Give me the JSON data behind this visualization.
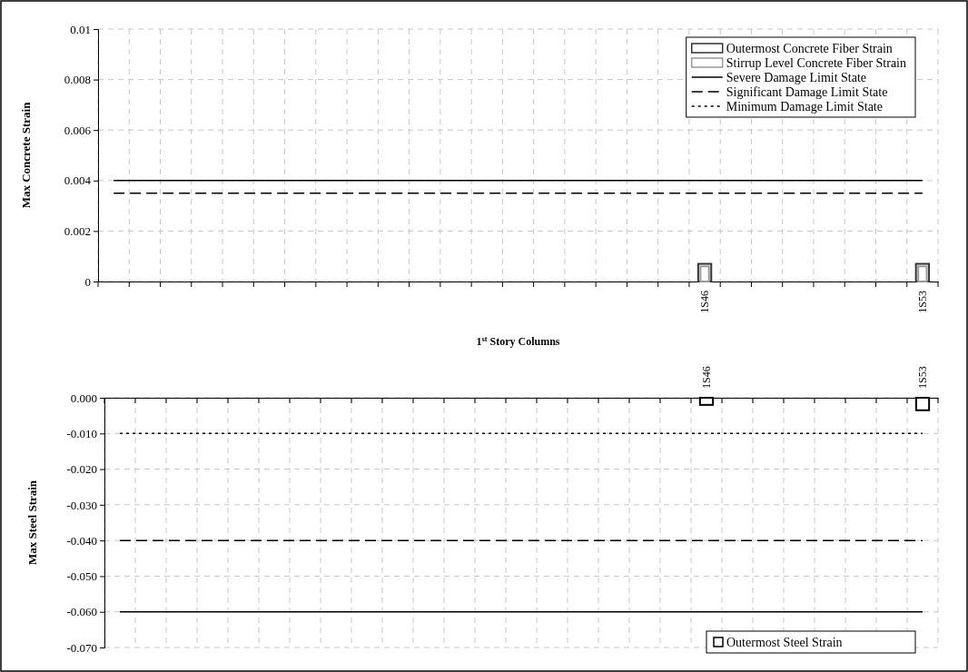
{
  "chart_data": [
    {
      "type": "bar",
      "xlabel": "1$^{st}$ Story Columns",
      "ylabel": "Max Concrete Strain",
      "categories": [
        null,
        null,
        null,
        null,
        null,
        null,
        null,
        null,
        null,
        null,
        null,
        null,
        null,
        null,
        null,
        null,
        null,
        null,
        null,
        "1S46",
        null,
        null,
        null,
        null,
        null,
        null,
        "1S53"
      ],
      "series": [
        {
          "name": "Outermost Concrete Fiber Strain",
          "color": "#333333",
          "values": [
            null,
            null,
            null,
            null,
            null,
            null,
            null,
            null,
            null,
            null,
            null,
            null,
            null,
            null,
            null,
            null,
            null,
            null,
            null,
            0.0007,
            null,
            null,
            null,
            null,
            null,
            null,
            0.0007
          ]
        },
        {
          "name": "Stirrup Level Concrete Fiber Strain",
          "color": "#999999",
          "values": [
            null,
            null,
            null,
            null,
            null,
            null,
            null,
            null,
            null,
            null,
            null,
            null,
            null,
            null,
            null,
            null,
            null,
            null,
            null,
            0.0006,
            null,
            null,
            null,
            null,
            null,
            null,
            0.0006
          ]
        },
        {
          "name": "Severe Damage Limit State",
          "type": "line",
          "color": "#000000",
          "line_style": "solid",
          "values": [
            0.004,
            0.004,
            0.004,
            0.004,
            0.004,
            0.004,
            0.004,
            0.004,
            0.004,
            0.004,
            0.004,
            0.004,
            0.004,
            0.004,
            0.004,
            0.004,
            0.004,
            0.004,
            0.004,
            0.004,
            0.004,
            0.004,
            0.004,
            0.004,
            0.004,
            0.004,
            0.004
          ]
        },
        {
          "name": "Significant Damage Limit State",
          "type": "line",
          "color": "#000000",
          "line_style": "dashed",
          "values": [
            0.0035,
            0.0035,
            0.0035,
            0.0035,
            0.0035,
            0.0035,
            0.0035,
            0.0035,
            0.0035,
            0.0035,
            0.0035,
            0.0035,
            0.0035,
            0.0035,
            0.0035,
            0.0035,
            0.0035,
            0.0035,
            0.0035,
            0.0035,
            0.0035,
            0.0035,
            0.0035,
            0.0035,
            0.0035,
            0.0035,
            0.0035
          ]
        },
        {
          "name": "Minimum Damage Limit State",
          "type": "line",
          "color": "#000000",
          "line_style": "dotted",
          "values": [
            null,
            null,
            null,
            null,
            null,
            null,
            null,
            null,
            null,
            null,
            null,
            null,
            null,
            null,
            null,
            null,
            null,
            null,
            null,
            null,
            null,
            null,
            null,
            null,
            null,
            null,
            null
          ]
        }
      ],
      "ylim": [
        0,
        0.01
      ],
      "yticks": [
        0,
        0.002,
        0.004,
        0.006,
        0.008,
        0.01
      ],
      "grid": true,
      "legend": "top right"
    },
    {
      "type": "bar",
      "ylabel": "Max Steel Strain",
      "categories": [
        null,
        null,
        null,
        null,
        null,
        null,
        null,
        null,
        null,
        null,
        null,
        null,
        null,
        null,
        null,
        null,
        null,
        null,
        null,
        "1S46",
        null,
        null,
        null,
        null,
        null,
        null,
        "1S53"
      ],
      "series": [
        {
          "name": "Outermost Steel Strain",
          "color": "#000000",
          "values": [
            null,
            null,
            null,
            null,
            null,
            null,
            null,
            null,
            null,
            null,
            null,
            null,
            null,
            null,
            null,
            null,
            null,
            null,
            null,
            -0.002,
            null,
            null,
            null,
            null,
            null,
            null,
            -0.0035
          ]
        },
        {
          "type": "line",
          "color": "#000000",
          "line_style": "dotted",
          "values": [
            -0.01,
            -0.01,
            -0.01,
            -0.01,
            -0.01,
            -0.01,
            -0.01,
            -0.01,
            -0.01,
            -0.01,
            -0.01,
            -0.01,
            -0.01,
            -0.01,
            -0.01,
            -0.01,
            -0.01,
            -0.01,
            -0.01,
            -0.01,
            -0.01,
            -0.01,
            -0.01,
            -0.01,
            -0.01,
            -0.01,
            -0.01
          ]
        },
        {
          "type": "line",
          "color": "#000000",
          "line_style": "dashed",
          "values": [
            -0.04,
            -0.04,
            -0.04,
            -0.04,
            -0.04,
            -0.04,
            -0.04,
            -0.04,
            -0.04,
            -0.04,
            -0.04,
            -0.04,
            -0.04,
            -0.04,
            -0.04,
            -0.04,
            -0.04,
            -0.04,
            -0.04,
            -0.04,
            -0.04,
            -0.04,
            -0.04,
            -0.04,
            -0.04,
            -0.04,
            -0.04
          ]
        },
        {
          "type": "line",
          "color": "#000000",
          "line_style": "solid",
          "values": [
            -0.06,
            -0.06,
            -0.06,
            -0.06,
            -0.06,
            -0.06,
            -0.06,
            -0.06,
            -0.06,
            -0.06,
            -0.06,
            -0.06,
            -0.06,
            -0.06,
            -0.06,
            -0.06,
            -0.06,
            -0.06,
            -0.06,
            -0.06,
            -0.06,
            -0.06,
            -0.06,
            -0.06,
            -0.06,
            -0.06,
            -0.06
          ]
        }
      ],
      "ylim": [
        -0.07,
        0
      ],
      "yticks": [
        {
          "value": -0.07,
          "label": "-0.070"
        },
        {
          "value": -0.06,
          "label": "-0.060"
        },
        {
          "value": -0.05,
          "label": "-0.050"
        },
        {
          "value": -0.04,
          "label": "-0.040"
        },
        {
          "value": -0.03,
          "label": "-0.030"
        },
        {
          "value": -0.02,
          "label": "-0.020"
        },
        {
          "value": -0.01,
          "label": "-0.010"
        },
        {
          "value": 0,
          "label": "0.000"
        }
      ],
      "grid": true,
      "legend": "bottom right"
    }
  ]
}
